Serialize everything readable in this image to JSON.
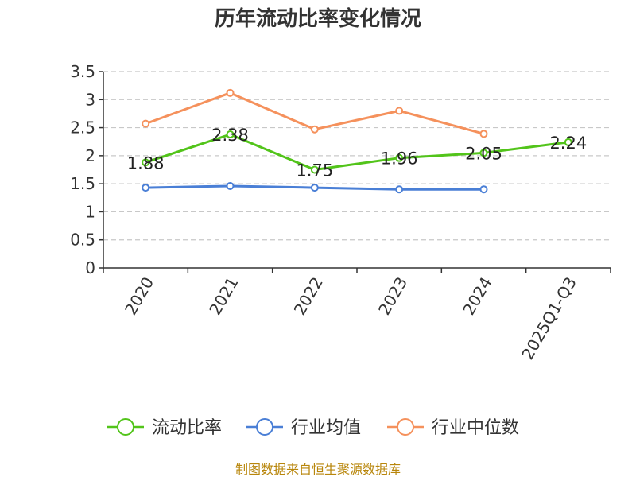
{
  "chart_data": {
    "type": "line",
    "title": "历年流动比率变化情况",
    "categories": [
      "2020",
      "2021",
      "2022",
      "2023",
      "2024",
      "2025Q1-Q3"
    ],
    "ylim": [
      0,
      3.5
    ],
    "yticks": [
      "0",
      "0.5",
      "1",
      "1.5",
      "2",
      "2.5",
      "3",
      "3.5"
    ],
    "grid": true,
    "legend_position": "bottom",
    "series": [
      {
        "name": "流动比率",
        "color": "#52c41a",
        "values": [
          1.88,
          2.38,
          1.75,
          1.96,
          2.05,
          2.24
        ],
        "labels": [
          "1.88",
          "2.38",
          "1.75",
          "1.96",
          "2.05",
          "2.24"
        ]
      },
      {
        "name": "行业均值",
        "color": "#4a7fd6",
        "values": [
          1.43,
          1.46,
          1.43,
          1.4,
          1.4,
          null
        ]
      },
      {
        "name": "行业中位数",
        "color": "#f5915c",
        "values": [
          2.57,
          3.12,
          2.47,
          2.8,
          2.39,
          null
        ]
      }
    ],
    "source": "制图数据来自恒生聚源数据库"
  }
}
